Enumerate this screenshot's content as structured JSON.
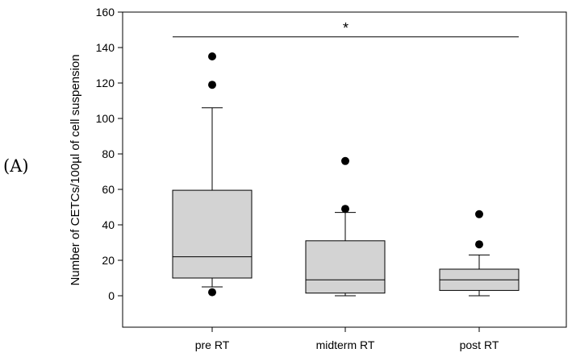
{
  "panel_label": "(A)",
  "chart_data": {
    "type": "box",
    "ylabel": "Number of CETCs/100µl of cell suspension",
    "xlabel": "",
    "ylim": [
      -20,
      160
    ],
    "yticks": [
      0,
      20,
      40,
      60,
      80,
      100,
      120,
      140,
      160
    ],
    "grid": false,
    "categories": [
      "pre RT",
      "midterm RT",
      "post RT"
    ],
    "boxes": [
      {
        "category": "pre RT",
        "whisker_low": 5,
        "q1": 10,
        "median": 22,
        "q3": 59.5,
        "whisker_high": 106,
        "outliers": [
          135,
          119,
          2
        ]
      },
      {
        "category": "midterm RT",
        "whisker_low": 0,
        "q1": 1.5,
        "median": 9,
        "q3": 31,
        "whisker_high": 47,
        "outliers": [
          76,
          49
        ]
      },
      {
        "category": "post RT",
        "whisker_low": 0,
        "q1": 3,
        "median": 9,
        "q3": 15,
        "whisker_high": 23,
        "outliers": [
          46,
          29
        ]
      }
    ],
    "annotations": [
      {
        "text": "*",
        "type": "significance_bracket",
        "from": "pre RT",
        "to": "post RT",
        "y": 146
      }
    ],
    "colors": {
      "box_fill": "#d3d3d3",
      "stroke": "#000000"
    }
  }
}
